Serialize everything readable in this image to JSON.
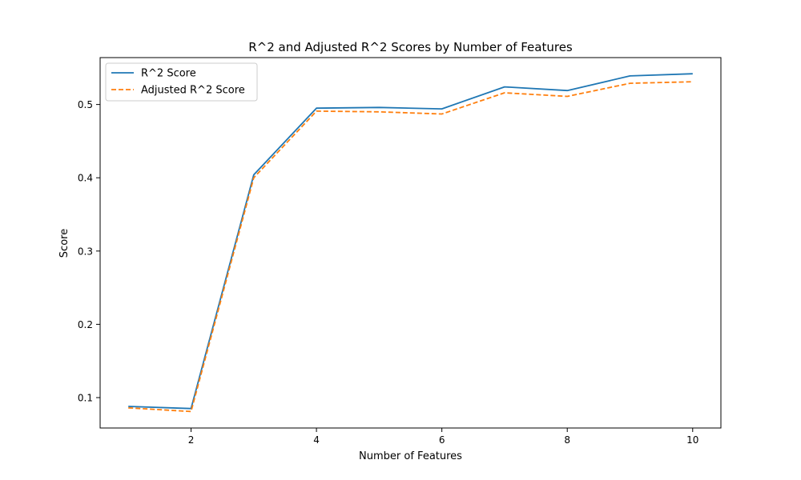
{
  "chart_data": {
    "type": "line",
    "title": "R^2 and Adjusted R^2 Scores by Number of Features",
    "xlabel": "Number of Features",
    "ylabel": "Score",
    "xlim": [
      0.55,
      10.45
    ],
    "ylim": [
      0.0585,
      0.564
    ],
    "x_ticks": [
      2,
      4,
      6,
      8,
      10
    ],
    "y_ticks": [
      0.1,
      0.2,
      0.3,
      0.4,
      0.5
    ],
    "grid": false,
    "legend_position": "upper-left",
    "x": [
      1,
      2,
      3,
      4,
      5,
      6,
      7,
      8,
      9,
      10
    ],
    "series": [
      {
        "name": "R^2 Score",
        "color": "#1f77b4",
        "style": "solid",
        "values": [
          0.088,
          0.085,
          0.404,
          0.495,
          0.496,
          0.494,
          0.524,
          0.519,
          0.539,
          0.542
        ]
      },
      {
        "name": "Adjusted R^2 Score",
        "color": "#ff7f0e",
        "style": "dashed",
        "values": [
          0.086,
          0.081,
          0.4,
          0.491,
          0.49,
          0.487,
          0.516,
          0.511,
          0.529,
          0.531
        ]
      }
    ]
  }
}
